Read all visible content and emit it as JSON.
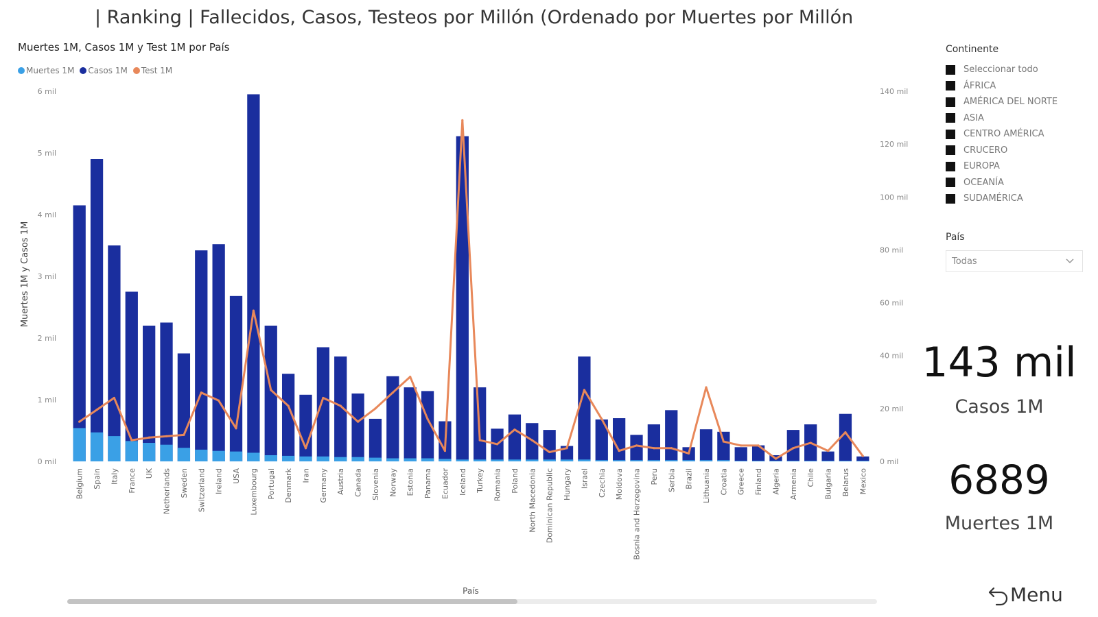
{
  "page": {
    "title": "| Ranking | Fallecidos, Casos, Testeos por Millón (Ordenado por Muertes por Millón"
  },
  "chart": {
    "title": "Muertes 1M, Casos 1M y Test 1M por País",
    "legend": [
      {
        "label": "Muertes 1M",
        "color": "#3aa0e6"
      },
      {
        "label": "Casos 1M",
        "color": "#1a2e9e"
      },
      {
        "label": "Test 1M",
        "color": "#e8885a"
      }
    ],
    "y_label": "Muertes 1M y Casos 1M",
    "x_label": "País",
    "left_ticks": [
      "0 mil",
      "1 mil",
      "2 mil",
      "3 mil",
      "4 mil",
      "5 mil",
      "6 mil"
    ],
    "right_ticks": [
      "0 mil",
      "20 mil",
      "40 mil",
      "60 mil",
      "80 mil",
      "100 mil",
      "120 mil",
      "140 mil"
    ]
  },
  "chart_data": {
    "type": "bar",
    "title": "Muertes 1M, Casos 1M y Test 1M por País",
    "xlabel": "País",
    "ylabel": "Muertes 1M y Casos 1M",
    "y2label": "",
    "ylim": [
      0,
      6000
    ],
    "y2lim": [
      0,
      140000
    ],
    "legend_position": "top-left",
    "categories": [
      "Belgium",
      "Spain",
      "Italy",
      "France",
      "UK",
      "Netherlands",
      "Sweden",
      "Switzerland",
      "Ireland",
      "USA",
      "Luxembourg",
      "Portugal",
      "Denmark",
      "Iran",
      "Germany",
      "Austria",
      "Canada",
      "Slovenia",
      "Norway",
      "Estonia",
      "Panama",
      "Ecuador",
      "Iceland",
      "Turkey",
      "Romania",
      "Poland",
      "North Macedonia",
      "Dominican Republic",
      "Hungary",
      "Israel",
      "Czechia",
      "Moldova",
      "Bosnia and Herzegovina",
      "Peru",
      "Serbia",
      "Brazil",
      "Lithuania",
      "Croatia",
      "Greece",
      "Finland",
      "Algeria",
      "Armenia",
      "Chile",
      "Bulgaria",
      "Belarus",
      "Mexico"
    ],
    "series": [
      {
        "name": "Muertes 1M",
        "type": "bar",
        "axis": "left",
        "values": [
          540,
          470,
          410,
          330,
          300,
          270,
          220,
          190,
          170,
          160,
          140,
          100,
          90,
          80,
          80,
          70,
          70,
          60,
          50,
          50,
          50,
          40,
          30,
          30,
          30,
          30,
          30,
          30,
          30,
          30,
          20,
          20,
          20,
          20,
          20,
          20,
          20,
          20,
          10,
          10,
          10,
          10,
          10,
          10,
          10,
          10
        ]
      },
      {
        "name": "Casos 1M",
        "type": "bar",
        "axis": "left",
        "values": [
          4150,
          4900,
          3500,
          2750,
          2200,
          2250,
          1750,
          3420,
          3520,
          2680,
          5950,
          2200,
          1420,
          1080,
          1850,
          1700,
          1100,
          690,
          1380,
          1200,
          1140,
          650,
          5270,
          1200,
          530,
          760,
          620,
          510,
          250,
          1700,
          680,
          700,
          430,
          600,
          830,
          230,
          520,
          480,
          230,
          260,
          100,
          510,
          600,
          160,
          770,
          80
        ]
      },
      {
        "name": "Test 1M",
        "type": "line",
        "axis": "right",
        "values": [
          15000,
          19500,
          24000,
          8000,
          9000,
          9500,
          10000,
          26000,
          23000,
          12500,
          57000,
          27000,
          21000,
          5000,
          24000,
          21000,
          15000,
          20000,
          26000,
          32000,
          16000,
          4000,
          129000,
          8000,
          6500,
          12000,
          8000,
          3500,
          5000,
          27000,
          16000,
          4000,
          6000,
          5000,
          5000,
          3000,
          28000,
          7500,
          6000,
          6000,
          1000,
          5000,
          7000,
          4000,
          11000,
          2000
        ]
      }
    ]
  },
  "filters": {
    "continent_title": "Continente",
    "continents": [
      "Seleccionar todo",
      "ÁFRICA",
      "AMÉRICA DEL NORTE",
      "ASIA",
      "CENTRO AMÉRICA",
      "CRUCERO",
      "EUROPA",
      "OCEANÍA",
      "SUDAMÉRICA"
    ],
    "country_title": "País",
    "country_selected": "Todas"
  },
  "cards": {
    "cases_value": "143 mil",
    "cases_label": "Casos 1M",
    "deaths_value": "6889",
    "deaths_label": "Muertes 1M"
  },
  "menu": {
    "label": "Menu"
  }
}
